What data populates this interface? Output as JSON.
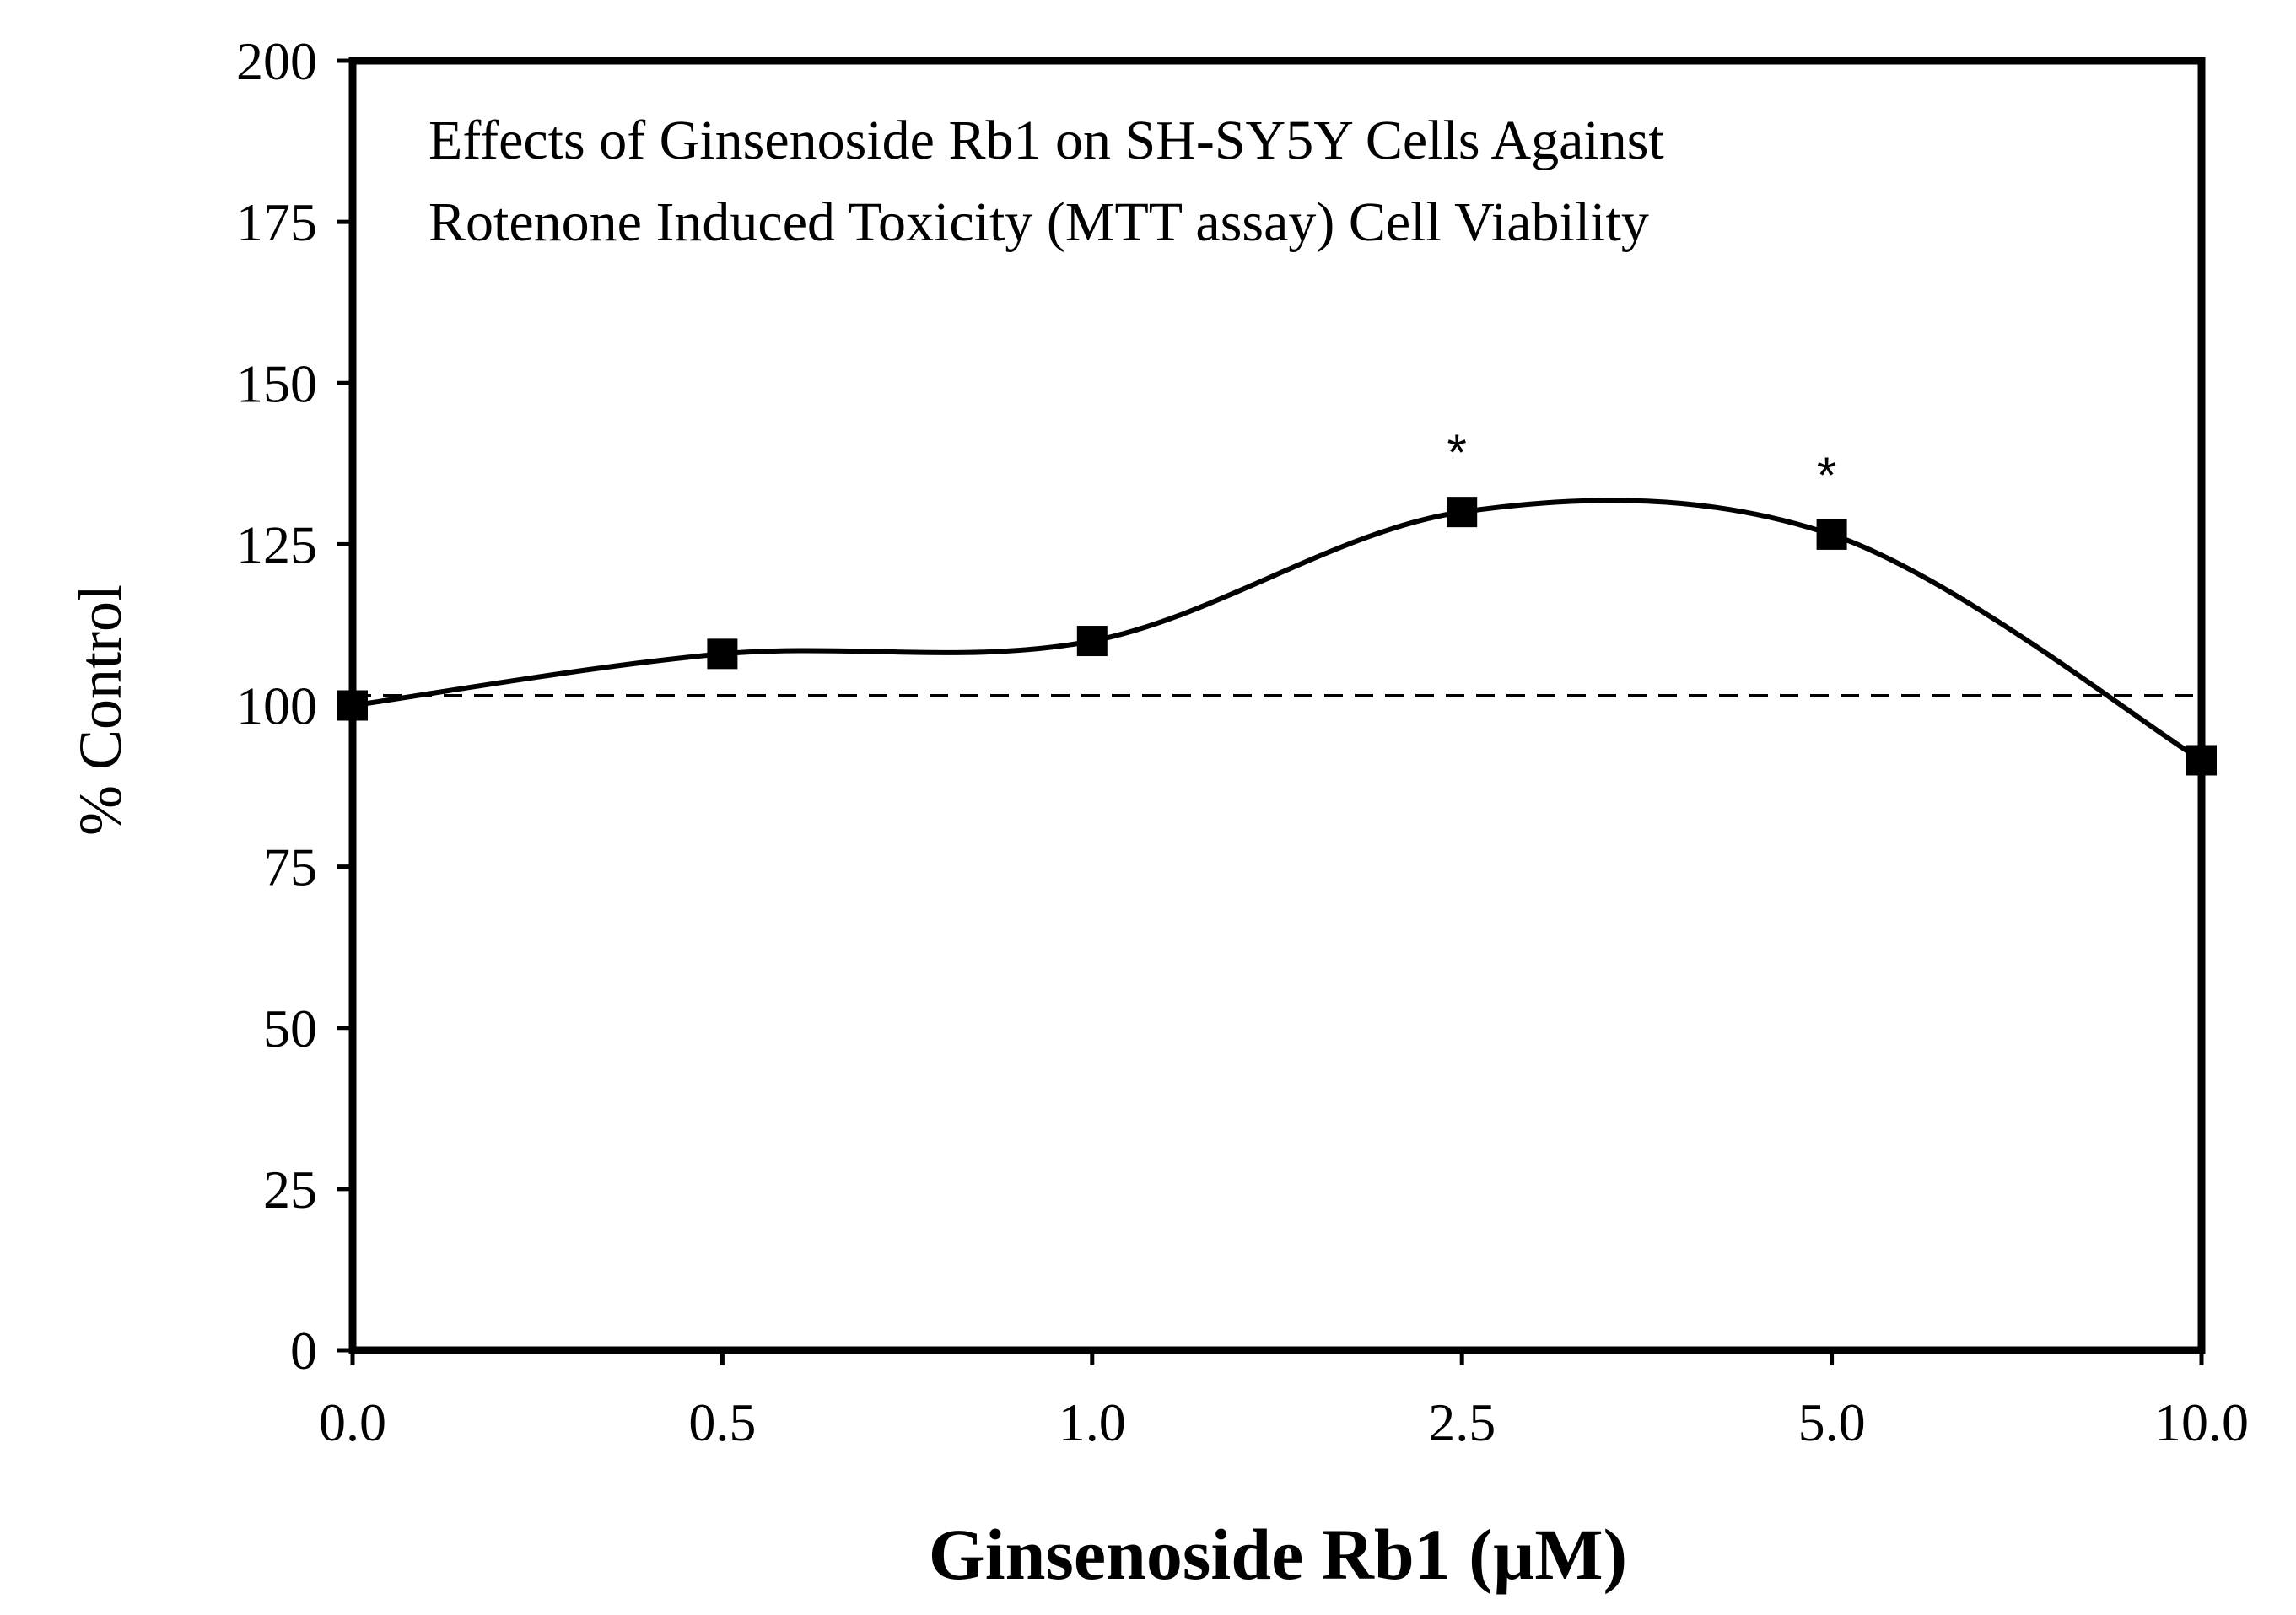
{
  "chart_data": {
    "type": "line",
    "title_lines": [
      "Effects of Ginsenoside Rb1 on SH-SY5Y Cells Against",
      "Rotenone Induced Toxicity (MTT assay) Cell Viability"
    ],
    "xlabel": "Ginsenoside Rb1 (µM)",
    "ylabel": "% Control",
    "categories": [
      "0.0",
      "0.5",
      "1.0",
      "2.5",
      "5.0",
      "10.0"
    ],
    "series": [
      {
        "name": "Cell Viability",
        "values": [
          100,
          108,
          110,
          130,
          126.5,
          91.5
        ],
        "significance": [
          "",
          "",
          "",
          "*",
          "*",
          ""
        ],
        "marker": "square",
        "line_style": "smooth",
        "color": "#000000"
      }
    ],
    "reference_line": {
      "value": 101.5,
      "style": "dashed",
      "color": "#000000"
    },
    "ylim": [
      0,
      200
    ],
    "yticks": [
      0,
      25,
      50,
      75,
      100,
      125,
      150,
      175,
      200
    ],
    "grid": false,
    "legend": "none"
  }
}
